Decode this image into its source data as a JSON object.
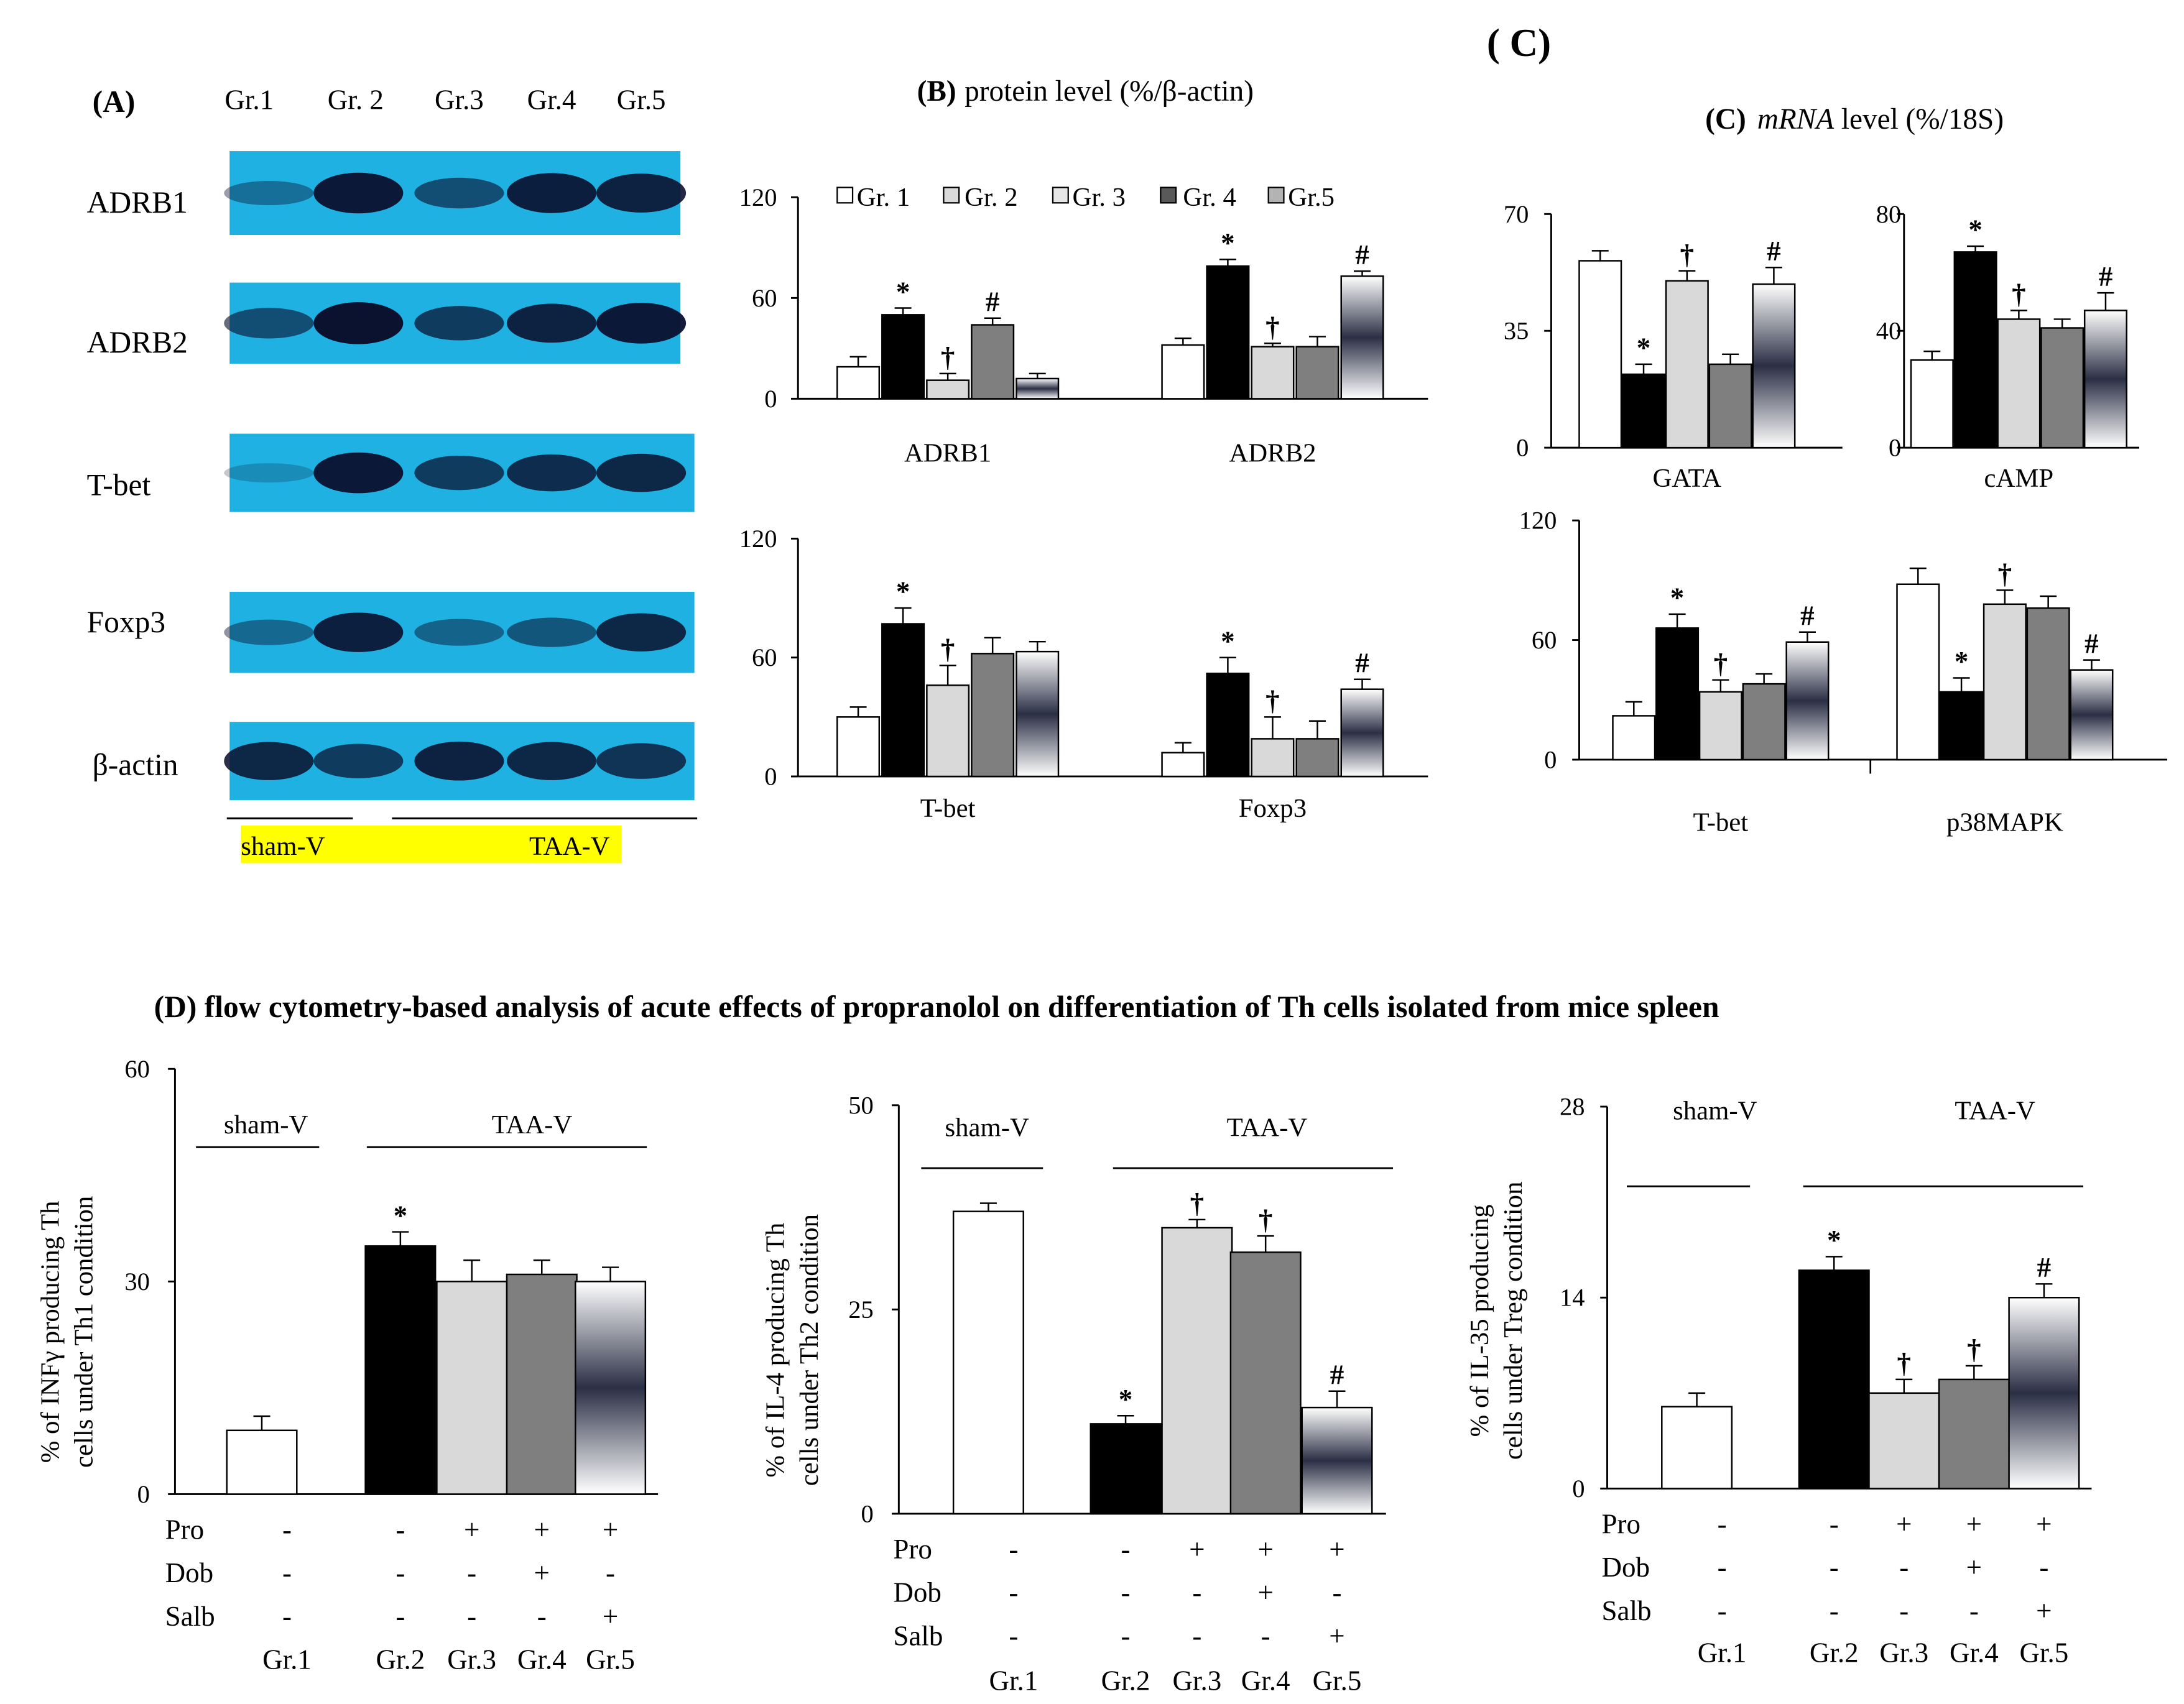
{
  "panel_a": {
    "label": "(A)",
    "groups": [
      "Gr.1",
      "Gr. 2",
      "Gr.3",
      "Gr.4",
      "Gr.5"
    ],
    "rows": [
      "ADRB1",
      "ADRB2",
      "T-bet",
      "Foxp3",
      "β-actin"
    ],
    "band_intensity": [
      [
        0.3,
        0.95,
        0.55,
        0.92,
        0.88
      ],
      [
        0.55,
        1.0,
        0.7,
        0.88,
        0.95
      ],
      [
        0.1,
        0.95,
        0.7,
        0.8,
        0.85
      ],
      [
        0.35,
        0.9,
        0.4,
        0.5,
        0.85
      ],
      [
        0.85,
        0.7,
        0.88,
        0.85,
        0.75
      ]
    ],
    "sham_label": "sham-V",
    "taa_label": "TAA-V",
    "highlight_color": "#ffff00",
    "blot_bg": "#1eb1e1",
    "band_color": "#0b1230"
  },
  "panel_b": {
    "label": "(B)",
    "title_text": "protein  level  (%/β-actin)",
    "legend": [
      "Gr. 1",
      "Gr. 2",
      "Gr. 3",
      "Gr. 4",
      "Gr.5"
    ]
  },
  "panel_c": {
    "label": "( C)",
    "subtitle_label": "(C)",
    "title_mrna": "mRNA",
    "title_rest": " level  (%/18S)"
  },
  "panel_d": {
    "title": "(D)  flow cytometry-based  analysis of acute effects of propranolol  on differentiation  of Th  cells isolated from mice  spleen",
    "treatment_labels": [
      "Pro",
      "Dob",
      "Salb"
    ],
    "treatment_matrix": [
      [
        "-",
        "-",
        "+",
        "+",
        "+"
      ],
      [
        "-",
        "-",
        "-",
        "+",
        "-"
      ],
      [
        "-",
        "-",
        "-",
        "-",
        "+"
      ]
    ],
    "groups": [
      "Gr.1",
      "Gr.2",
      "Gr.3",
      "Gr.4",
      "Gr.5"
    ],
    "sham_label": "sham-V",
    "taa_label": "TAA-V"
  },
  "colors": {
    "gr1": "#ffffff",
    "gr2": "#000000",
    "gr3": "#d9d9d9",
    "gr4": "#7f7f7f",
    "gr5_edge": "#2b2f45",
    "gr5_mid": "#e6e6ec"
  },
  "chart_data": [
    {
      "id": "b1",
      "type": "bar",
      "title": "protein level (%/β-actin)",
      "categories": [
        "ADRB1",
        "ADRB2"
      ],
      "series": [
        {
          "name": "Gr. 1",
          "values": [
            19,
            32
          ],
          "errors": [
            6,
            4
          ]
        },
        {
          "name": "Gr. 2",
          "values": [
            50,
            79
          ],
          "errors": [
            4,
            4
          ]
        },
        {
          "name": "Gr. 3",
          "values": [
            11,
            31
          ],
          "errors": [
            4,
            2
          ]
        },
        {
          "name": "Gr. 4",
          "values": [
            44,
            31
          ],
          "errors": [
            4,
            6
          ]
        },
        {
          "name": "Gr.5",
          "values": [
            12,
            73
          ],
          "errors": [
            3,
            3
          ]
        }
      ],
      "marks": [
        [
          "",
          ""
        ],
        [
          "*",
          "*"
        ],
        [
          "†",
          "†"
        ],
        [
          "#",
          ""
        ],
        [
          "",
          "#"
        ]
      ],
      "yticks": [
        0,
        60,
        120
      ],
      "ylim": [
        0,
        120
      ],
      "xlabel": "",
      "ylabel": ""
    },
    {
      "id": "b2",
      "type": "bar",
      "categories": [
        "T-bet",
        "Foxp3"
      ],
      "series": [
        {
          "name": "Gr. 1",
          "values": [
            30,
            12
          ],
          "errors": [
            5,
            5
          ]
        },
        {
          "name": "Gr. 2",
          "values": [
            77,
            52
          ],
          "errors": [
            8,
            8
          ]
        },
        {
          "name": "Gr. 3",
          "values": [
            46,
            19
          ],
          "errors": [
            10,
            11
          ]
        },
        {
          "name": "Gr. 4",
          "values": [
            62,
            19
          ],
          "errors": [
            8,
            9
          ]
        },
        {
          "name": "Gr.5",
          "values": [
            63,
            44
          ],
          "errors": [
            5,
            5
          ]
        }
      ],
      "marks": [
        [
          "",
          ""
        ],
        [
          "*",
          "*"
        ],
        [
          "†",
          "†"
        ],
        [
          "",
          ""
        ],
        [
          "",
          "#"
        ]
      ],
      "yticks": [
        0,
        60,
        120
      ],
      "ylim": [
        0,
        120
      ],
      "xlabel": "",
      "ylabel": ""
    },
    {
      "id": "c1",
      "type": "bar",
      "title": "mRNA level (%/18S)",
      "categories": [
        "GATA"
      ],
      "series": [
        {
          "name": "Gr. 1",
          "values": [
            56
          ],
          "errors": [
            3
          ]
        },
        {
          "name": "Gr. 2",
          "values": [
            22
          ],
          "errors": [
            3
          ]
        },
        {
          "name": "Gr. 3",
          "values": [
            50
          ],
          "errors": [
            3
          ]
        },
        {
          "name": "Gr. 4",
          "values": [
            25
          ],
          "errors": [
            3
          ]
        },
        {
          "name": "Gr.5",
          "values": [
            49
          ],
          "errors": [
            5
          ]
        }
      ],
      "marks": [
        [
          "",
          "*",
          "†",
          "",
          "#"
        ]
      ],
      "yticks": [
        0,
        35,
        70
      ],
      "ylim": [
        0,
        70
      ],
      "xlabel": "",
      "ylabel": ""
    },
    {
      "id": "c2",
      "type": "bar",
      "categories": [
        "cAMP"
      ],
      "series": [
        {
          "name": "Gr. 1",
          "values": [
            30
          ],
          "errors": [
            3
          ]
        },
        {
          "name": "Gr. 2",
          "values": [
            67
          ],
          "errors": [
            2
          ]
        },
        {
          "name": "Gr. 3",
          "values": [
            44
          ],
          "errors": [
            3
          ]
        },
        {
          "name": "Gr. 4",
          "values": [
            41
          ],
          "errors": [
            3
          ]
        },
        {
          "name": "Gr.5",
          "values": [
            47
          ],
          "errors": [
            6
          ]
        }
      ],
      "marks": [
        [
          "",
          "*",
          "†",
          "",
          "#"
        ]
      ],
      "yticks": [
        0,
        40,
        80
      ],
      "ylim": [
        0,
        80
      ],
      "xlabel": "",
      "ylabel": ""
    },
    {
      "id": "c3",
      "type": "bar",
      "categories": [
        "T-bet",
        "p38MAPK"
      ],
      "series": [
        {
          "name": "Gr. 1",
          "values": [
            22,
            88
          ],
          "errors": [
            7,
            8
          ]
        },
        {
          "name": "Gr. 2",
          "values": [
            66,
            34
          ],
          "errors": [
            7,
            7
          ]
        },
        {
          "name": "Gr. 3",
          "values": [
            34,
            78
          ],
          "errors": [
            6,
            7
          ]
        },
        {
          "name": "Gr. 4",
          "values": [
            38,
            76
          ],
          "errors": [
            5,
            6
          ]
        },
        {
          "name": "Gr.5",
          "values": [
            59,
            45
          ],
          "errors": [
            5,
            5
          ]
        }
      ],
      "marks": [
        [
          "",
          ""
        ],
        [
          "*",
          "*"
        ],
        [
          "†",
          "†"
        ],
        [
          "",
          ""
        ],
        [
          "#",
          "#"
        ]
      ],
      "yticks": [
        0,
        60,
        120
      ],
      "ylim": [
        0,
        120
      ],
      "xlabel": "",
      "ylabel": ""
    },
    {
      "id": "d1",
      "type": "bar",
      "categories": [
        "Gr.1",
        "Gr.2",
        "Gr.3",
        "Gr.4",
        "Gr.5"
      ],
      "values": [
        9,
        35,
        30,
        31,
        30
      ],
      "errors": [
        2,
        2,
        3,
        2,
        2
      ],
      "marks": [
        "",
        "*",
        "",
        "",
        ""
      ],
      "yticks": [
        0,
        30,
        60
      ],
      "ylim": [
        0,
        60
      ],
      "ylabel": "% of INFγ producing Th cells under Th1 condition",
      "xlabel": ""
    },
    {
      "id": "d2",
      "type": "bar",
      "categories": [
        "Gr.1",
        "Gr.2",
        "Gr.3",
        "Gr.4",
        "Gr.5"
      ],
      "values": [
        37,
        11,
        35,
        32,
        13
      ],
      "errors": [
        1,
        1,
        1,
        2,
        2
      ],
      "marks": [
        "",
        "*",
        "†",
        "†",
        "#"
      ],
      "yticks": [
        0,
        25,
        50
      ],
      "ylim": [
        0,
        50
      ],
      "ylabel": "% of IL-4 producing Th cells under Th2 condition",
      "xlabel": ""
    },
    {
      "id": "d3",
      "type": "bar",
      "categories": [
        "Gr.1",
        "Gr.2",
        "Gr.3",
        "Gr.4",
        "Gr.5"
      ],
      "values": [
        6,
        16,
        7,
        8,
        14
      ],
      "errors": [
        1,
        1,
        1,
        1,
        1
      ],
      "marks": [
        "",
        "*",
        "†",
        "†",
        "#"
      ],
      "yticks": [
        0,
        14,
        28
      ],
      "ylim": [
        0,
        28
      ],
      "ylabel": "% of IL-35 producing cells under Treg condition",
      "xlabel": ""
    }
  ]
}
